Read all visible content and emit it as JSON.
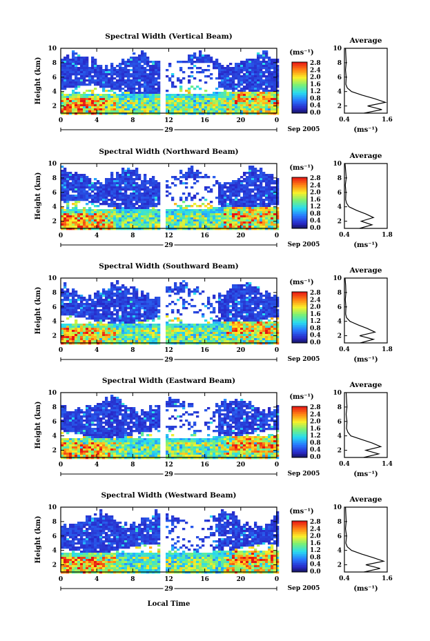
{
  "figure": {
    "xlabel": "Local Time",
    "date_label": "Sep 2005",
    "day_label": "29",
    "ylabel": "Height (km)",
    "colorbar_unit": "(ms⁻¹)",
    "avg_title": "Average",
    "avg_xlabel": "(ms⁻¹)"
  },
  "chart_data": [
    {
      "type": "heatmap",
      "title": "Spectral Width (Vertical Beam)",
      "x_ticks": [
        "0",
        "4",
        "8",
        "12",
        "16",
        "20",
        "0"
      ],
      "xlim": [
        0,
        24
      ],
      "y_ticks": [
        "2",
        "4",
        "6",
        "8",
        "10"
      ],
      "ylim": [
        1,
        10
      ],
      "colorbar_ticks": [
        "0.0",
        "0.4",
        "0.8",
        "1.2",
        "1.6",
        "2.0",
        "2.4",
        "2.8"
      ],
      "data_gap_hours": [
        10.9,
        11.7
      ],
      "avg_profile": {
        "title": "Average",
        "x_ticks": [
          "0.4",
          "1.6"
        ],
        "xlim": [
          0.4,
          1.6
        ],
        "ylim": [
          1,
          10
        ],
        "height_km": [
          1.0,
          1.5,
          2.0,
          2.5,
          3.0,
          3.5,
          4.0,
          4.5,
          5.0,
          6.0,
          7.0,
          8.0,
          9.0,
          10.0
        ],
        "width_ms": [
          0.95,
          1.45,
          1.05,
          1.55,
          1.25,
          0.9,
          0.6,
          0.48,
          0.44,
          0.45,
          0.43,
          0.45,
          0.44,
          0.43
        ]
      }
    },
    {
      "type": "heatmap",
      "title": "Spectral Width (Northward Beam)",
      "x_ticks": [
        "0",
        "4",
        "8",
        "12",
        "16",
        "20",
        "0"
      ],
      "xlim": [
        0,
        24
      ],
      "y_ticks": [
        "2",
        "4",
        "6",
        "8",
        "10"
      ],
      "ylim": [
        1,
        10
      ],
      "colorbar_ticks": [
        "0.0",
        "0.4",
        "0.8",
        "1.2",
        "1.6",
        "2.0",
        "2.4",
        "2.8"
      ],
      "data_gap_hours": [
        10.9,
        11.7
      ],
      "avg_profile": {
        "title": "Average",
        "x_ticks": [
          "0.4",
          "1.8"
        ],
        "xlim": [
          0.4,
          1.8
        ],
        "ylim": [
          1,
          10
        ],
        "height_km": [
          1.0,
          1.5,
          2.0,
          2.5,
          3.0,
          3.5,
          4.0,
          4.5,
          5.0,
          6.0,
          7.0,
          8.0,
          9.0,
          10.0
        ],
        "width_ms": [
          0.9,
          1.3,
          0.95,
          1.35,
          1.1,
          0.8,
          0.55,
          0.47,
          0.44,
          0.45,
          0.43,
          0.46,
          0.44,
          0.42
        ]
      }
    },
    {
      "type": "heatmap",
      "title": "Spectral Width (Southward Beam)",
      "x_ticks": [
        "0",
        "4",
        "8",
        "12",
        "16",
        "20",
        "0"
      ],
      "xlim": [
        0,
        24
      ],
      "y_ticks": [
        "2",
        "4",
        "6",
        "8",
        "10"
      ],
      "ylim": [
        1,
        10
      ],
      "colorbar_ticks": [
        "0.0",
        "0.4",
        "0.8",
        "1.2",
        "1.6",
        "2.0",
        "2.4",
        "2.8"
      ],
      "data_gap_hours": [
        10.9,
        11.7
      ],
      "avg_profile": {
        "title": "Average",
        "x_ticks": [
          "0.4",
          "1.8"
        ],
        "xlim": [
          0.4,
          1.8
        ],
        "ylim": [
          1,
          10
        ],
        "height_km": [
          1.0,
          1.5,
          2.0,
          2.5,
          3.0,
          3.5,
          4.0,
          4.5,
          5.0,
          6.0,
          7.0,
          8.0,
          9.0,
          10.0
        ],
        "width_ms": [
          0.92,
          1.35,
          0.9,
          1.4,
          1.15,
          0.85,
          0.58,
          0.47,
          0.44,
          0.45,
          0.43,
          0.45,
          0.44,
          0.42
        ]
      }
    },
    {
      "type": "heatmap",
      "title": "Spectral Width (Eastward Beam)",
      "x_ticks": [
        "0",
        "4",
        "8",
        "12",
        "16",
        "20",
        "0"
      ],
      "xlim": [
        0,
        24
      ],
      "y_ticks": [
        "2",
        "4",
        "6",
        "8",
        "10"
      ],
      "ylim": [
        1,
        10
      ],
      "colorbar_ticks": [
        "0.0",
        "0.4",
        "0.8",
        "1.2",
        "1.6",
        "2.0",
        "2.4",
        "2.8"
      ],
      "data_gap_hours": [
        10.9,
        11.7
      ],
      "avg_profile": {
        "title": "Average",
        "x_ticks": [
          "0.4",
          "1.4"
        ],
        "xlim": [
          0.4,
          1.4
        ],
        "ylim": [
          1,
          10
        ],
        "height_km": [
          1.0,
          1.5,
          2.0,
          2.5,
          3.0,
          3.5,
          4.0,
          4.5,
          5.0,
          6.0,
          7.0,
          8.0,
          9.0,
          10.0
        ],
        "width_ms": [
          0.85,
          1.2,
          0.9,
          1.25,
          1.05,
          0.8,
          0.55,
          0.48,
          0.45,
          0.46,
          0.44,
          0.46,
          0.45,
          0.44
        ]
      }
    },
    {
      "type": "heatmap",
      "title": "Spectral Width (Westward Beam)",
      "x_ticks": [
        "0",
        "4",
        "8",
        "12",
        "16",
        "20",
        "0"
      ],
      "xlim": [
        0,
        24
      ],
      "y_ticks": [
        "2",
        "4",
        "6",
        "8",
        "10"
      ],
      "ylim": [
        1,
        10
      ],
      "colorbar_ticks": [
        "0.0",
        "0.4",
        "0.8",
        "1.2",
        "1.6",
        "2.0",
        "2.4",
        "2.8"
      ],
      "data_gap_hours": [
        10.9,
        11.7
      ],
      "avg_profile": {
        "title": "Average",
        "x_ticks": [
          "0.4",
          "1.6"
        ],
        "xlim": [
          0.4,
          1.6
        ],
        "ylim": [
          1,
          10
        ],
        "height_km": [
          1.0,
          1.5,
          2.0,
          2.5,
          3.0,
          3.5,
          4.0,
          4.5,
          5.0,
          6.0,
          7.0,
          8.0,
          9.0,
          10.0
        ],
        "width_ms": [
          0.95,
          1.4,
          1.0,
          1.5,
          1.2,
          0.88,
          0.6,
          0.48,
          0.44,
          0.46,
          0.43,
          0.45,
          0.44,
          0.43
        ]
      }
    }
  ]
}
